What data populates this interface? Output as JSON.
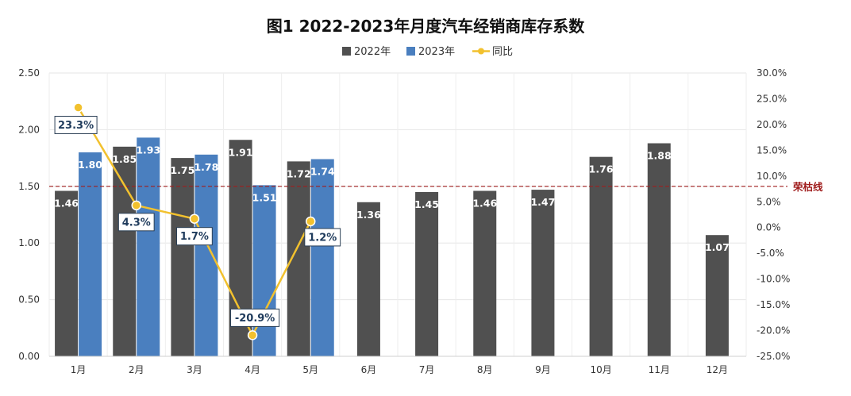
{
  "chart_data": {
    "type": "bar",
    "title": "图1  2022-2023年月度汽车经销商库存系数",
    "categories": [
      "1月",
      "2月",
      "3月",
      "4月",
      "5月",
      "6月",
      "7月",
      "8月",
      "9月",
      "10月",
      "11月",
      "12月"
    ],
    "series": [
      {
        "name": "2022年",
        "type": "bar",
        "color": "#505050",
        "axis": "left",
        "values": [
          1.46,
          1.85,
          1.75,
          1.91,
          1.72,
          1.36,
          1.45,
          1.46,
          1.47,
          1.76,
          1.88,
          1.07
        ],
        "labels": [
          "1.46",
          "1.85",
          "1.75",
          "1.91",
          "1.72",
          "1.36",
          "1.45",
          "1.46",
          "1.47",
          "1.76",
          "1.88",
          "1.07"
        ]
      },
      {
        "name": "2023年",
        "type": "bar",
        "color": "#4a7fbf",
        "axis": "left",
        "values": [
          1.8,
          1.93,
          1.78,
          1.51,
          1.74,
          null,
          null,
          null,
          null,
          null,
          null,
          null
        ],
        "labels": [
          "1.80",
          "1.93",
          "1.78",
          "1.51",
          "1.74",
          "",
          "",
          "",
          "",
          "",
          "",
          ""
        ]
      },
      {
        "name": "同比",
        "type": "line",
        "color": "#f2c12e",
        "axis": "right",
        "values": [
          23.3,
          4.3,
          1.7,
          -20.9,
          1.2,
          null,
          null,
          null,
          null,
          null,
          null,
          null
        ],
        "labels": [
          "23.3%",
          "4.3%",
          "1.7%",
          "-20.9%",
          "1.2%",
          "",
          "",
          "",
          "",
          "",
          "",
          ""
        ]
      }
    ],
    "y_left": {
      "min": 0,
      "max": 2.5,
      "ticks": [
        "0.00",
        "0.50",
        "1.00",
        "1.50",
        "2.00",
        "2.50"
      ]
    },
    "y_right": {
      "min": -25,
      "max": 30,
      "ticks": [
        "-25.0%",
        "-20.0%",
        "-15.0%",
        "-10.0%",
        "-5.0%",
        "0.0%",
        "5.0%",
        "10.0%",
        "15.0%",
        "20.0%",
        "25.0%",
        "30.0%"
      ]
    },
    "reference_line": {
      "value": 1.5,
      "label": "荣枯线",
      "color": "#a01e1e",
      "axis": "left",
      "style": "dashed"
    },
    "grid": true,
    "legend": "top-center"
  }
}
